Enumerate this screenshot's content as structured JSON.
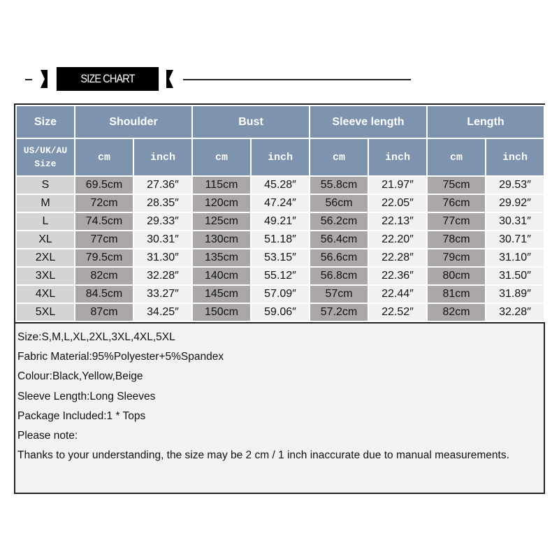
{
  "banner": {
    "title": "SIZE CHART"
  },
  "table": {
    "headers": [
      "Size",
      "Shoulder",
      "Bust",
      "Sleeve length",
      "Length"
    ],
    "subheader": {
      "size": "US/UK/AU Size",
      "cm": "cm",
      "inch": "inch"
    },
    "rows": [
      [
        "S",
        "69.5cm",
        "27.36″",
        "115cm",
        "45.28″",
        "55.8cm",
        "21.97″",
        "75cm",
        "29.53″"
      ],
      [
        "M",
        "72cm",
        "28.35″",
        "120cm",
        "47.24″",
        "56cm",
        "22.05″",
        "76cm",
        "29.92″"
      ],
      [
        "L",
        "74.5cm",
        "29.33″",
        "125cm",
        "49.21″",
        "56.2cm",
        "22.13″",
        "77cm",
        "30.31″"
      ],
      [
        "XL",
        "77cm",
        "30.31″",
        "130cm",
        "51.18″",
        "56.4cm",
        "22.20″",
        "78cm",
        "30.71″"
      ],
      [
        "2XL",
        "79.5cm",
        "31.30″",
        "135cm",
        "53.15″",
        "56.6cm",
        "22.28″",
        "79cm",
        "31.10″"
      ],
      [
        "3XL",
        "82cm",
        "32.28″",
        "140cm",
        "55.12″",
        "56.8cm",
        "22.36″",
        "80cm",
        "31.50″"
      ],
      [
        "4XL",
        "84.5cm",
        "33.27″",
        "145cm",
        "57.09″",
        "57cm",
        "22.44″",
        "81cm",
        "31.89″"
      ],
      [
        "5XL",
        "87cm",
        "34.25″",
        "150cm",
        "59.06″",
        "57.2cm",
        "22.52″",
        "82cm",
        "32.28″"
      ]
    ]
  },
  "notes": [
    "Size:S,M,L,XL,2XL,3XL,4XL,5XL",
    "Fabric Material:95%Polyester+5%Spandex",
    "Colour:Black,Yellow,Beige",
    "Sleeve Length:Long Sleeves",
    "Package Included:1 * Tops",
    "Please note:",
    "Thanks to your understanding, the size may be 2 cm / 1 inch inaccurate due to manual measurements."
  ],
  "colors": {
    "header": "#7e93ae",
    "cm_cell": "#aaa7a6",
    "inch_cell": "#f1f1f1",
    "size_cell": "#d4d4d4"
  }
}
